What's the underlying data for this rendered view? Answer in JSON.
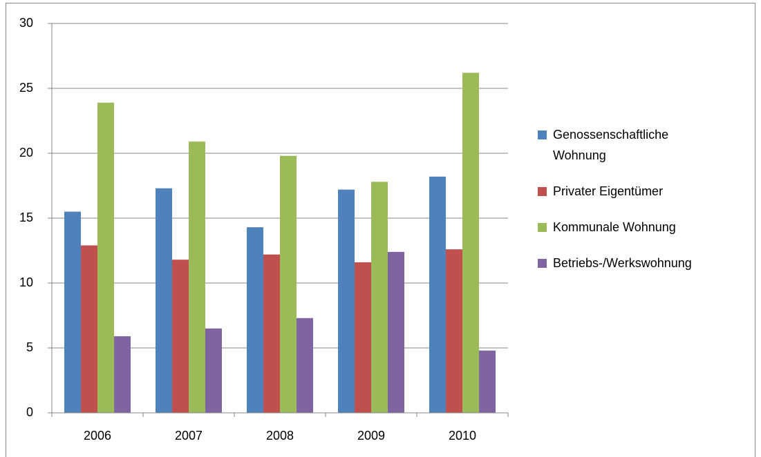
{
  "chart_data": {
    "type": "bar",
    "categories": [
      "2006",
      "2007",
      "2008",
      "2009",
      "2010"
    ],
    "series": [
      {
        "name": "Genossenschaftliche Wohnung",
        "color": "#4f81bd",
        "values": [
          15.5,
          17.3,
          14.3,
          17.2,
          18.2
        ]
      },
      {
        "name": "Privater Eigentümer",
        "color": "#c0504d",
        "values": [
          12.9,
          11.8,
          12.2,
          11.6,
          12.6
        ]
      },
      {
        "name": "Kommunale Wohnung",
        "color": "#9bbb59",
        "values": [
          23.9,
          20.9,
          19.8,
          17.8,
          26.2
        ]
      },
      {
        "name": "Betriebs-/Werkswohnung",
        "color": "#8064a2",
        "values": [
          5.9,
          6.5,
          7.3,
          12.4,
          4.8
        ]
      }
    ],
    "ylim": [
      0,
      30
    ],
    "yticks": [
      0,
      5,
      10,
      15,
      20,
      25,
      30
    ],
    "grid": true,
    "legend": "right"
  }
}
